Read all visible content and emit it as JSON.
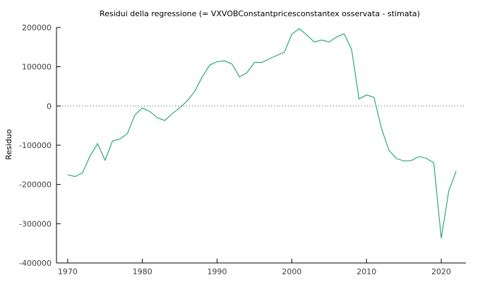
{
  "chart_data": {
    "type": "line",
    "title": "Residui della regressione (= VXVOBConstantpricesconstantex osservata - stimata)",
    "xlabel": "",
    "ylabel": "Residuo",
    "xlim": [
      1968.5,
      2023.3
    ],
    "ylim": [
      -400000,
      200000
    ],
    "x_ticks": [
      1970,
      1980,
      1990,
      2000,
      2010,
      2020
    ],
    "y_ticks": [
      -400000,
      -300000,
      -200000,
      -100000,
      0,
      100000,
      200000
    ],
    "y_tick_labels": [
      "-400000",
      "-300000",
      "-200000",
      "-100000",
      "0",
      "100000",
      "200000"
    ],
    "x_tick_labels": [
      "1970",
      "1980",
      "1990",
      "2000",
      "2010",
      "2020"
    ],
    "reference_line": 0,
    "grid": false,
    "color": "#2ca87a",
    "series": [
      {
        "x": [
          1970,
          1971,
          1972,
          1973,
          1974,
          1975,
          1976,
          1977,
          1978,
          1979,
          1980,
          1981,
          1982,
          1983,
          1984,
          1985,
          1986,
          1987,
          1988,
          1989,
          1990,
          1991,
          1992,
          1993,
          1994,
          1995,
          1996,
          1997,
          1998,
          1999,
          2000,
          2001,
          2002,
          2003,
          2004,
          2005,
          2006,
          2007,
          2008,
          2009,
          2010,
          2011,
          2012,
          2013,
          2014,
          2015,
          2016,
          2017,
          2018,
          2019,
          2020,
          2021,
          2022
        ],
        "values": [
          -175000,
          -180000,
          -170000,
          -127000,
          -96000,
          -138000,
          -89000,
          -84000,
          -70000,
          -23000,
          -5000,
          -14000,
          -30000,
          -37000,
          -19000,
          -5000,
          13000,
          37000,
          74000,
          104000,
          113000,
          115000,
          107000,
          74000,
          85000,
          111000,
          111000,
          120000,
          129000,
          137000,
          183000,
          197000,
          181000,
          163000,
          168000,
          163000,
          176000,
          184000,
          144000,
          18000,
          28000,
          22000,
          -57000,
          -113000,
          -134000,
          -140000,
          -139000,
          -129000,
          -133000,
          -145000,
          -337000,
          -217000,
          -166000
        ]
      }
    ]
  }
}
